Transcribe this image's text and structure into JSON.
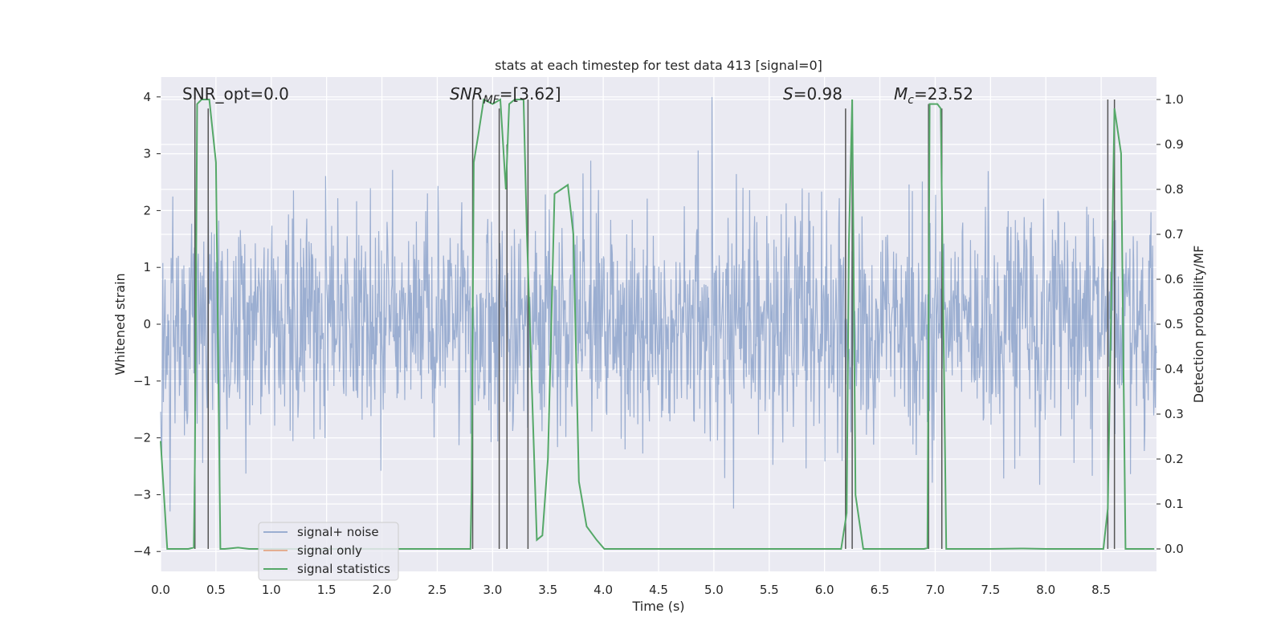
{
  "chart_data": {
    "type": "line",
    "title": "stats at each timestep for test data 413 [signal=0]",
    "xlabel": "Time (s)",
    "ylabel_left": "Whitened strain",
    "ylabel_right": "Detection probability/MF",
    "xlim": [
      0,
      9
    ],
    "ylim_left": [
      -4.35,
      4.35
    ],
    "ylim_right": [
      -0.05,
      1.05
    ],
    "x_ticks": [
      0.0,
      0.5,
      1.0,
      1.5,
      2.0,
      2.5,
      3.0,
      3.5,
      4.0,
      4.5,
      5.0,
      5.5,
      6.0,
      6.5,
      7.0,
      7.5,
      8.0,
      8.5
    ],
    "x_tick_labels": [
      "0.0",
      "0.5",
      "1.0",
      "1.5",
      "2.0",
      "2.5",
      "3.0",
      "3.5",
      "4.0",
      "4.5",
      "5.0",
      "5.5",
      "6.0",
      "6.5",
      "7.0",
      "7.5",
      "8.0",
      "8.5"
    ],
    "y_ticks_left": [
      4,
      3,
      2,
      1,
      0,
      -1,
      -2,
      -3,
      -4
    ],
    "y_tick_labels_left": [
      "4",
      "3",
      "2",
      "1",
      "0",
      "−1",
      "−2",
      "−3",
      "−4"
    ],
    "y_ticks_right": [
      1.0,
      0.9,
      0.8,
      0.7,
      0.6,
      0.5,
      0.4,
      0.3,
      0.2,
      0.1,
      0.0
    ],
    "y_tick_labels_right": [
      "1.0",
      "0.9",
      "0.8",
      "0.7",
      "0.6",
      "0.5",
      "0.4",
      "0.3",
      "0.2",
      "0.1",
      "0.0"
    ],
    "annotations": {
      "snr_opt": "SNR_opt=0.0",
      "snr_mf_main": "SNR",
      "snr_mf_sub": "MF",
      "snr_mf_value": "=[3.62]",
      "s_main": "S",
      "s_value": "=0.98",
      "mc_main": "M",
      "mc_sub": "c",
      "mc_value": "=23.52"
    },
    "legend": {
      "placement": "lower-left",
      "entries": [
        "signal+ noise",
        "signal only",
        "signal statistics"
      ]
    },
    "series": [
      {
        "name": "signal+ noise",
        "color": "#4c72b0",
        "opacity": 0.5,
        "note": "whitened noise approx. N(0,1); dense trace from 0 to 9 s",
        "n_samples": 1800,
        "sigma": 1.0
      },
      {
        "name": "signal only",
        "color": "#dd8452",
        "values": []
      },
      {
        "name": "signal statistics",
        "color": "#55a868",
        "axis": "right",
        "x": [
          0.0,
          0.06,
          0.15,
          0.25,
          0.3,
          0.31,
          0.33,
          0.37,
          0.44,
          0.5,
          0.54,
          0.58,
          0.7,
          0.8,
          1.0,
          1.5,
          2.0,
          2.5,
          2.8,
          2.81,
          2.83,
          2.87,
          2.92,
          3.0,
          3.07,
          3.12,
          3.15,
          3.2,
          3.28,
          3.31,
          3.4,
          3.45,
          3.5,
          3.56,
          3.62,
          3.68,
          3.73,
          3.78,
          3.85,
          3.94,
          4.01,
          4.2,
          5.0,
          6.0,
          6.15,
          6.2,
          6.22,
          6.25,
          6.28,
          6.35,
          6.5,
          6.9,
          6.93,
          6.95,
          7.02,
          7.05,
          7.1,
          7.5,
          7.8,
          8.0,
          8.4,
          8.52,
          8.56,
          8.62,
          8.68,
          8.72,
          8.8,
          8.98
        ],
        "values": [
          0.24,
          0.0,
          0.0,
          0.0,
          0.003,
          0.2,
          0.99,
          1.0,
          1.0,
          0.86,
          0.0,
          0.0,
          0.003,
          0.0,
          0.0,
          0.0,
          0.0,
          0.0,
          0.0,
          0.13,
          0.86,
          0.92,
          1.0,
          0.99,
          1.0,
          0.8,
          0.99,
          1.0,
          1.0,
          0.7,
          0.02,
          0.03,
          0.2,
          0.79,
          0.8,
          0.81,
          0.7,
          0.15,
          0.05,
          0.02,
          0.0,
          0.0,
          0.0,
          0.0,
          0.0,
          0.08,
          0.68,
          1.0,
          0.12,
          0.0,
          0.0,
          0.0,
          0.002,
          0.99,
          0.99,
          0.98,
          0.0,
          0.0,
          0.001,
          0.0,
          0.0,
          0.0,
          0.09,
          0.98,
          0.88,
          0.0,
          0.0,
          0.0
        ]
      }
    ],
    "vertical_markers": {
      "color": "#555555",
      "x": [
        0.31,
        0.43,
        2.82,
        3.06,
        3.13,
        3.32,
        6.19,
        6.25,
        6.94,
        7.06,
        8.56,
        8.62
      ],
      "y_right": [
        [
          0.0,
          1.0
        ],
        [
          0.0,
          0.98
        ],
        [
          0.0,
          1.0
        ],
        [
          0.0,
          0.98
        ],
        [
          0.0,
          0.9
        ],
        [
          0.0,
          1.0
        ],
        [
          0.0,
          0.98
        ],
        [
          0.0,
          1.0
        ],
        [
          0.0,
          0.99
        ],
        [
          0.0,
          0.98
        ],
        [
          0.0,
          1.0
        ],
        [
          0.0,
          1.0
        ]
      ]
    }
  }
}
